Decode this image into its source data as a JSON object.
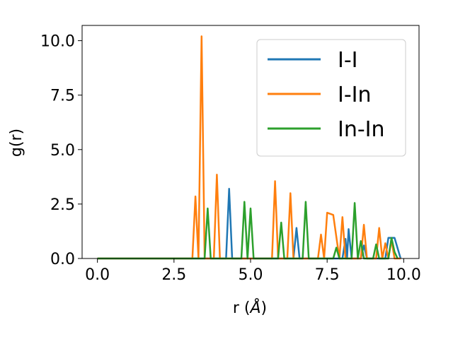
{
  "chart_data": {
    "type": "line",
    "xlabel_prefix": "r (",
    "xlabel_unit": "Å",
    "xlabel_suffix": ")",
    "ylabel": "g(r)",
    "xlim": [
      -0.5,
      10.5
    ],
    "ylim": [
      0,
      10.7
    ],
    "xticks": [
      0.0,
      2.5,
      5.0,
      7.5,
      10.0
    ],
    "xtick_labels": [
      "0.0",
      "2.5",
      "5.0",
      "7.5",
      "10.0"
    ],
    "yticks": [
      0.0,
      2.5,
      5.0,
      7.5,
      10.0
    ],
    "ytick_labels": [
      "0.0",
      "2.5",
      "5.0",
      "7.5",
      "10.0"
    ],
    "grid": false,
    "legend_position": "top-right",
    "series": [
      {
        "name": "I-I",
        "color": "#1f77b4",
        "points": [
          [
            0,
            0
          ],
          [
            4.2,
            0
          ],
          [
            4.3,
            3.2
          ],
          [
            4.4,
            0
          ],
          [
            6.4,
            0
          ],
          [
            6.5,
            1.4
          ],
          [
            6.6,
            0
          ],
          [
            8.0,
            0
          ],
          [
            8.1,
            0.9
          ],
          [
            8.15,
            0
          ],
          [
            8.2,
            1.35
          ],
          [
            8.3,
            0
          ],
          [
            8.6,
            0
          ],
          [
            8.7,
            0.6
          ],
          [
            8.8,
            0
          ],
          [
            9.4,
            0
          ],
          [
            9.5,
            0.95
          ],
          [
            9.7,
            0.95
          ],
          [
            9.9,
            0
          ]
        ]
      },
      {
        "name": "I-In",
        "color": "#ff7f0e",
        "points": [
          [
            0,
            0
          ],
          [
            3.1,
            0
          ],
          [
            3.2,
            2.85
          ],
          [
            3.3,
            0
          ],
          [
            3.4,
            10.2
          ],
          [
            3.5,
            0
          ],
          [
            3.8,
            0
          ],
          [
            3.9,
            3.85
          ],
          [
            4.0,
            0
          ],
          [
            5.7,
            0
          ],
          [
            5.8,
            3.55
          ],
          [
            5.9,
            0
          ],
          [
            6.2,
            0
          ],
          [
            6.3,
            3.0
          ],
          [
            6.4,
            0
          ],
          [
            7.2,
            0
          ],
          [
            7.3,
            1.1
          ],
          [
            7.4,
            0
          ],
          [
            7.5,
            2.1
          ],
          [
            7.7,
            2.0
          ],
          [
            7.9,
            0
          ],
          [
            8.0,
            1.9
          ],
          [
            8.1,
            0
          ],
          [
            8.6,
            0
          ],
          [
            8.7,
            1.55
          ],
          [
            8.8,
            0
          ],
          [
            9.1,
            0
          ],
          [
            9.2,
            1.4
          ],
          [
            9.3,
            0
          ],
          [
            9.4,
            0.7
          ],
          [
            9.5,
            0
          ],
          [
            9.6,
            0.85
          ],
          [
            9.7,
            0
          ],
          [
            9.9,
            0
          ]
        ]
      },
      {
        "name": "In-In",
        "color": "#2ca02c",
        "points": [
          [
            0,
            0
          ],
          [
            3.5,
            0
          ],
          [
            3.6,
            2.3
          ],
          [
            3.7,
            0
          ],
          [
            4.7,
            0
          ],
          [
            4.8,
            2.6
          ],
          [
            4.9,
            0
          ],
          [
            5.0,
            2.3
          ],
          [
            5.1,
            0
          ],
          [
            5.9,
            0
          ],
          [
            6.0,
            1.65
          ],
          [
            6.1,
            0
          ],
          [
            6.7,
            0
          ],
          [
            6.8,
            2.6
          ],
          [
            6.9,
            0
          ],
          [
            7.7,
            0
          ],
          [
            7.8,
            0.5
          ],
          [
            7.9,
            0
          ],
          [
            8.3,
            0
          ],
          [
            8.4,
            2.55
          ],
          [
            8.5,
            0
          ],
          [
            8.6,
            0.8
          ],
          [
            8.7,
            0
          ],
          [
            9.0,
            0
          ],
          [
            9.1,
            0.65
          ],
          [
            9.2,
            0
          ],
          [
            9.5,
            0
          ],
          [
            9.6,
            0.95
          ],
          [
            9.7,
            0.3
          ],
          [
            9.8,
            0
          ]
        ]
      }
    ]
  }
}
